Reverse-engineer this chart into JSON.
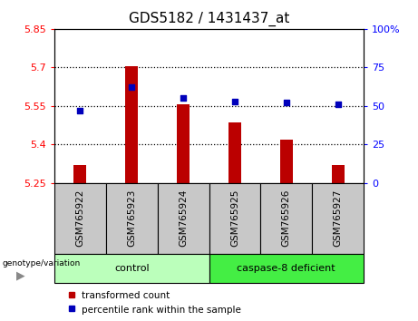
{
  "title": "GDS5182 / 1431437_at",
  "samples": [
    "GSM765922",
    "GSM765923",
    "GSM765924",
    "GSM765925",
    "GSM765926",
    "GSM765927"
  ],
  "bar_values": [
    5.32,
    5.705,
    5.555,
    5.485,
    5.42,
    5.32
  ],
  "percentile_values": [
    47,
    62,
    55,
    53,
    52,
    51
  ],
  "ylim_left": [
    5.25,
    5.85
  ],
  "ylim_right": [
    0,
    100
  ],
  "yticks_left": [
    5.25,
    5.4,
    5.55,
    5.7,
    5.85
  ],
  "yticks_right": [
    0,
    25,
    50,
    75,
    100
  ],
  "ytick_labels_left": [
    "5.25",
    "5.4",
    "5.55",
    "5.7",
    "5.85"
  ],
  "ytick_labels_right": [
    "0",
    "25",
    "50",
    "75",
    "100%"
  ],
  "hlines": [
    5.4,
    5.55,
    5.7
  ],
  "bar_color": "#bb0000",
  "dot_color": "#0000bb",
  "bar_bottom": 5.25,
  "ctrl_color": "#bbffbb",
  "casp_color": "#44ee44",
  "sample_box_color": "#c8c8c8",
  "genotype_label": "genotype/variation",
  "legend_bar_label": "transformed count",
  "legend_dot_label": "percentile rank within the sample",
  "title_fontsize": 11,
  "tick_fontsize": 8,
  "bar_width": 0.25
}
